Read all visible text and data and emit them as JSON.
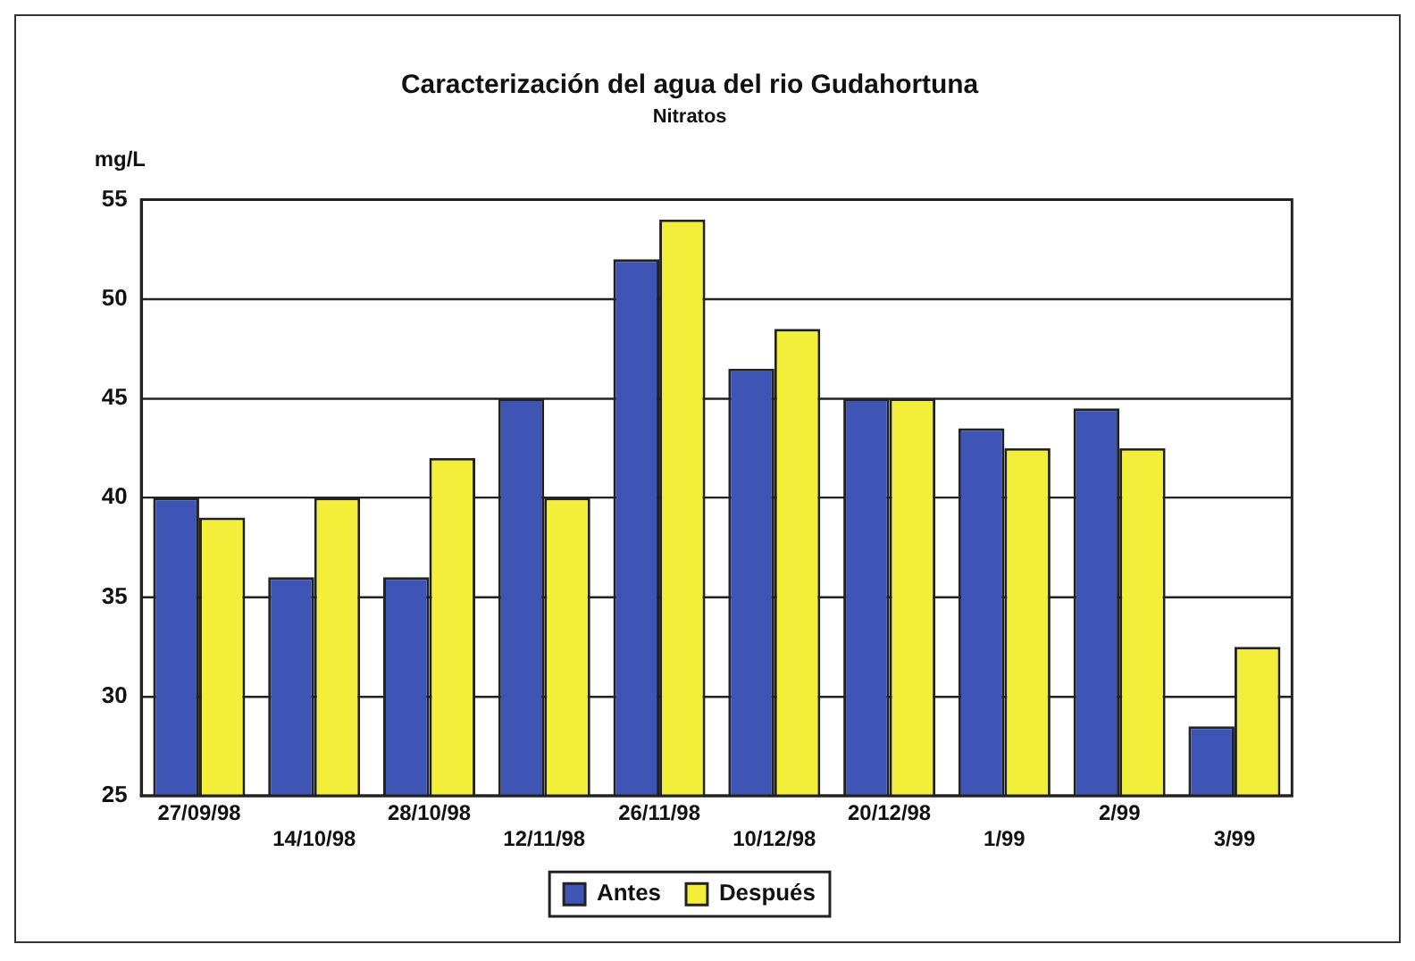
{
  "chart_data": {
    "type": "bar",
    "title": "Caracterización del agua del rio Gudahortuna",
    "subtitle": "Nitratos",
    "ylabel": "mg/L",
    "categories": [
      "27/09/98",
      "14/10/98",
      "28/10/98",
      "12/11/98",
      "26/11/98",
      "10/12/98",
      "20/12/98",
      "1/99",
      "2/99",
      "3/99"
    ],
    "series": [
      {
        "name": "Antes",
        "color": "#3f55b5",
        "values": [
          40,
          36,
          36,
          45,
          52,
          46.5,
          45,
          43.5,
          44.5,
          28.5
        ]
      },
      {
        "name": "Después",
        "color": "#f2ee3a",
        "values": [
          39,
          40,
          42,
          40,
          54,
          48.5,
          45,
          42.5,
          42.5,
          32.5
        ]
      }
    ],
    "ylim": [
      25,
      55
    ],
    "yticks": [
      25,
      30,
      35,
      40,
      45,
      50,
      55
    ],
    "grid": "y",
    "legend": "bottom"
  }
}
